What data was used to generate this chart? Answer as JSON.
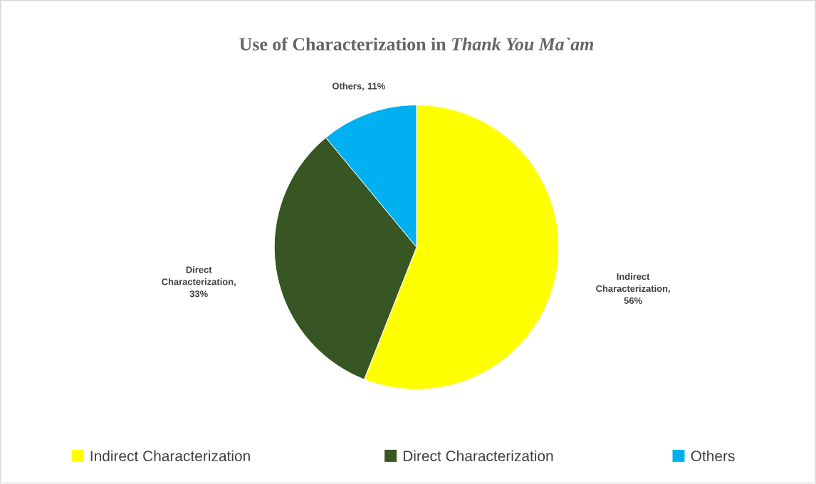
{
  "chart_data": {
    "type": "pie",
    "title": "Use of Characterization in *Thank You Ma`am*",
    "categories": [
      "Indirect Characterization",
      "Direct Characterization",
      "Others"
    ],
    "values": [
      56,
      33,
      11
    ],
    "colors": [
      "#ffff00",
      "#375623",
      "#00b0f0"
    ],
    "value_labels": [
      "Indirect Characterization, 56%",
      "Direct Characterization, 33%",
      "Others, 11%"
    ],
    "legend": "bottom"
  }
}
